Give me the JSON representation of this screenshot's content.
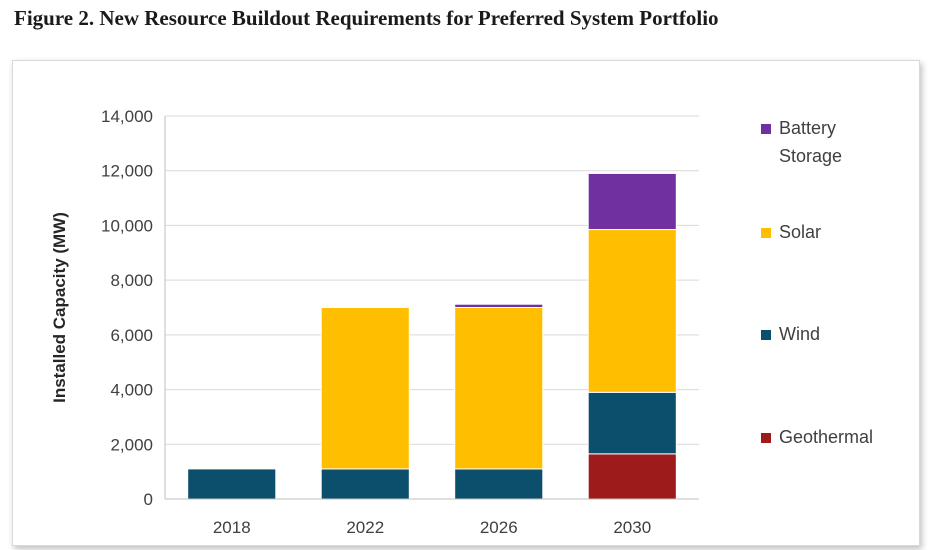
{
  "figure": {
    "title": "Figure 2. New Resource Buildout Requirements for Preferred System Portfolio"
  },
  "chart_data": {
    "type": "bar",
    "stacked": true,
    "title": "",
    "xlabel": "",
    "ylabel": "Installed Capacity (MW)",
    "categories": [
      "2018",
      "2022",
      "2026",
      "2030"
    ],
    "ylim": [
      0,
      14000
    ],
    "yticks": [
      0,
      2000,
      4000,
      6000,
      8000,
      10000,
      12000,
      14000
    ],
    "ytick_labels": [
      "0",
      "2,000",
      "4,000",
      "6,000",
      "8,000",
      "10,000",
      "12,000",
      "14,000"
    ],
    "grid": "horizontal",
    "legend_position": "right",
    "series": [
      {
        "name": "Geothermal",
        "color": "#9e1b1b",
        "values": [
          0,
          0,
          0,
          1650
        ]
      },
      {
        "name": "Wind",
        "color": "#0b4f6c",
        "values": [
          1100,
          1100,
          1100,
          2250
        ]
      },
      {
        "name": "Solar",
        "color": "#ffbf00",
        "values": [
          0,
          5900,
          5900,
          5950
        ]
      },
      {
        "name": "Battery Storage",
        "color": "#7030a0",
        "values": [
          0,
          0,
          120,
          2050
        ]
      }
    ],
    "legend_order": [
      "Battery Storage",
      "Solar",
      "Wind",
      "Geothermal"
    ]
  }
}
